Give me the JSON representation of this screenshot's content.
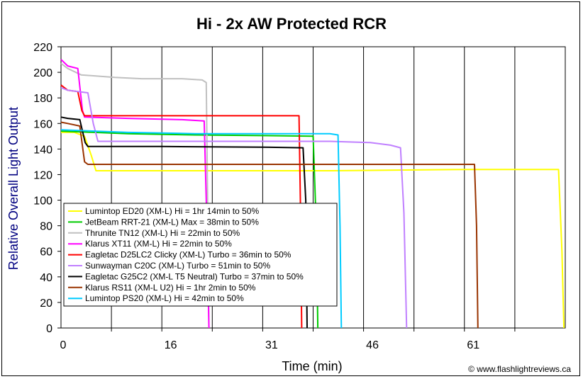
{
  "chart_data": {
    "type": "line",
    "title": "Hi - 2x AW Protected RCR",
    "xlabel": "Time (min)",
    "ylabel": "Relative Overall Light Output",
    "xlim": [
      0,
      75
    ],
    "ylim": [
      0,
      220
    ],
    "xticks": [
      0,
      16,
      31,
      46,
      61
    ],
    "yticks": [
      0,
      20,
      40,
      60,
      80,
      100,
      120,
      140,
      160,
      180,
      200,
      220
    ],
    "grid": "vertical",
    "legend_position": "lower-left",
    "credit": "© www.flashlightreviews.ca",
    "colors": {
      "axis_title": "#000080",
      "frame": "#000000"
    },
    "series": [
      {
        "name": "Lumintop ED20 (XM-L) Hi = 1hr 14min to 50%",
        "color": "#ffff00",
        "points": [
          [
            0,
            153
          ],
          [
            2,
            153
          ],
          [
            3.5,
            150
          ],
          [
            4.5,
            135
          ],
          [
            5.2,
            123
          ],
          [
            10,
            123
          ],
          [
            20,
            123
          ],
          [
            40,
            123
          ],
          [
            60,
            124
          ],
          [
            74,
            124
          ],
          [
            74.5,
            60
          ],
          [
            74.8,
            0
          ]
        ]
      },
      {
        "name": "JetBeam RRT-21 (XM-L) Max = 38min to 50%",
        "color": "#00cc00",
        "points": [
          [
            0,
            154
          ],
          [
            5,
            153
          ],
          [
            10,
            152
          ],
          [
            20,
            151
          ],
          [
            30,
            150.5
          ],
          [
            37.5,
            150
          ],
          [
            38,
            75
          ],
          [
            38.2,
            0
          ]
        ]
      },
      {
        "name": "Thrunite TN12 (XM-L) Hi = 22min to 50%",
        "color": "#c0c0c0",
        "points": [
          [
            0,
            207
          ],
          [
            1,
            203
          ],
          [
            3,
            198
          ],
          [
            8,
            196
          ],
          [
            12,
            195
          ],
          [
            18,
            195
          ],
          [
            21,
            194
          ],
          [
            21.6,
            192
          ],
          [
            21.8,
            100
          ],
          [
            22,
            0
          ]
        ]
      },
      {
        "name": "Klarus XT11 (XM-L) Hi = 22min to 50%",
        "color": "#ff00ff",
        "points": [
          [
            0,
            210
          ],
          [
            1,
            205
          ],
          [
            2.5,
            203
          ],
          [
            3.2,
            170
          ],
          [
            3.5,
            165
          ],
          [
            10,
            164
          ],
          [
            18,
            163
          ],
          [
            21.3,
            162
          ],
          [
            21.6,
            100
          ],
          [
            22,
            0
          ]
        ]
      },
      {
        "name": "Eagletac D25LC2 Clicky (XM-L) Turbo = 36min to 50%",
        "color": "#ff0000",
        "points": [
          [
            0,
            190
          ],
          [
            1,
            186
          ],
          [
            2.5,
            185
          ],
          [
            3.1,
            170
          ],
          [
            3.5,
            166
          ],
          [
            10,
            166
          ],
          [
            20,
            166
          ],
          [
            35.4,
            166
          ],
          [
            35.6,
            100
          ],
          [
            35.8,
            0
          ]
        ]
      },
      {
        "name": "Sunwayman C20C (XM-L) Turbo = 51min to 50%",
        "color": "#c080ff",
        "points": [
          [
            0,
            188
          ],
          [
            1,
            186
          ],
          [
            4,
            184
          ],
          [
            4.8,
            160
          ],
          [
            5.5,
            146
          ],
          [
            15,
            146
          ],
          [
            30,
            146
          ],
          [
            40,
            146
          ],
          [
            46,
            145
          ],
          [
            49,
            143
          ],
          [
            50.5,
            141
          ],
          [
            51,
            90
          ],
          [
            51.4,
            0
          ]
        ]
      },
      {
        "name": "Eagletac G25C2 (XM-L T5 Neutral) Turbo = 37min to 50%",
        "color": "#000000",
        "points": [
          [
            0,
            165
          ],
          [
            1,
            164
          ],
          [
            2.8,
            163
          ],
          [
            3.6,
            145
          ],
          [
            4,
            142
          ],
          [
            15,
            142
          ],
          [
            30,
            141.5
          ],
          [
            36,
            141
          ],
          [
            36.4,
            100
          ],
          [
            36.6,
            0
          ]
        ]
      },
      {
        "name": "Klarus RS11 (XM-L U2) Hi = 1hr 2min to 50%",
        "color": "#993300",
        "points": [
          [
            0,
            161
          ],
          [
            1,
            160
          ],
          [
            2.8,
            158
          ],
          [
            3.5,
            130
          ],
          [
            4,
            128
          ],
          [
            20,
            128
          ],
          [
            40,
            128
          ],
          [
            55,
            128
          ],
          [
            61.5,
            128
          ],
          [
            61.8,
            80
          ],
          [
            62,
            0
          ]
        ]
      },
      {
        "name": "Lumintop PS20 (XM-L) Hi = 42min to 50%",
        "color": "#00ccff",
        "points": [
          [
            0,
            155
          ],
          [
            5,
            154
          ],
          [
            10,
            153
          ],
          [
            20,
            152
          ],
          [
            30,
            152
          ],
          [
            40,
            152
          ],
          [
            41.2,
            151
          ],
          [
            41.5,
            80
          ],
          [
            41.7,
            0
          ]
        ]
      }
    ]
  }
}
